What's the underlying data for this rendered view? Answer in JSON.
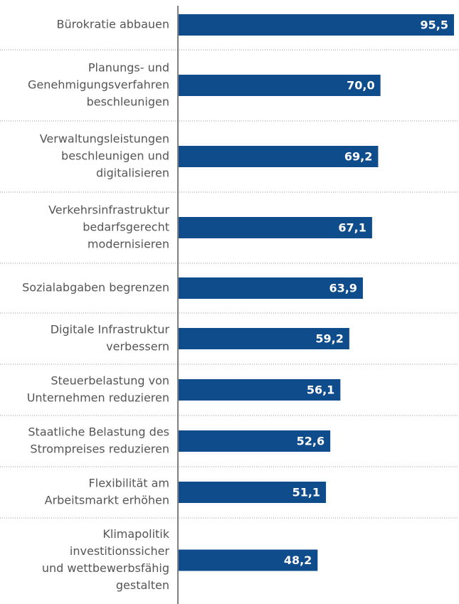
{
  "chart_data": {
    "type": "hbar",
    "categories": [
      [
        "Bürokratie abbauen"
      ],
      [
        "Planungs- und",
        "Genehmigungsverfahren",
        "beschleunigen"
      ],
      [
        "Verwaltungsleistungen",
        "beschleunigen und",
        "digitalisieren"
      ],
      [
        "Verkehrsinfrastruktur",
        "bedarfsgerecht",
        "modernisieren"
      ],
      [
        "Sozialabgaben begrenzen"
      ],
      [
        "Digitale Infrastruktur",
        "verbessern"
      ],
      [
        "Steuerbelastung von",
        "Unternehmen reduzieren"
      ],
      [
        "Staatliche Belastung des",
        "Strompreises reduzieren"
      ],
      [
        "Flexibilität am",
        "Arbeitsmarkt erhöhen"
      ],
      [
        "Klimapolitik",
        "investitionssicher",
        "und wettbewerbsfähig",
        "gestalten"
      ]
    ],
    "values": [
      95.5,
      70.0,
      69.2,
      67.1,
      63.9,
      59.2,
      56.1,
      52.6,
      51.1,
      48.2
    ],
    "value_labels": [
      "95,5",
      "70,0",
      "69,2",
      "67,1",
      "63,9",
      "59,2",
      "56,1",
      "52,6",
      "51,1",
      "48,2"
    ],
    "color": "#0f4c8c",
    "xlim": [
      0,
      96
    ]
  }
}
